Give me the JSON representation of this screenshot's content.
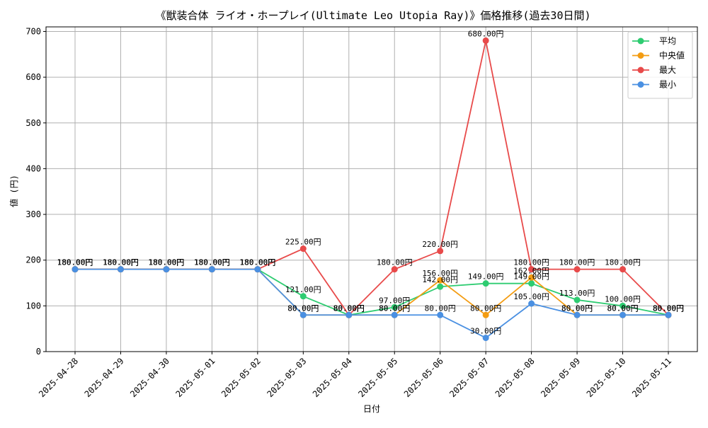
{
  "chart_data": {
    "type": "line",
    "title": "《獣装合体 ライオ・ホープレイ(Ultimate Leo Utopia Ray)》価格推移(過去30日間)",
    "xlabel": "日付",
    "ylabel": "値 (円)",
    "ylim": [
      0,
      710
    ],
    "yticks": [
      0,
      100,
      200,
      300,
      400,
      500,
      600,
      700
    ],
    "grid": true,
    "legend_position": "top-right",
    "value_suffix": "円",
    "categories": [
      "2025-04-28",
      "2025-04-29",
      "2025-04-30",
      "2025-05-01",
      "2025-05-02",
      "2025-05-03",
      "2025-05-04",
      "2025-05-05",
      "2025-05-06",
      "2025-05-07",
      "2025-05-08",
      "2025-05-09",
      "2025-05-10",
      "2025-05-11"
    ],
    "series": [
      {
        "name": "平均",
        "color": "#2ecc71",
        "values": [
          180,
          180,
          180,
          180,
          180,
          121,
          80,
          97,
          142,
          149,
          149,
          113,
          100,
          80
        ]
      },
      {
        "name": "中央値",
        "color": "#f39c12",
        "values": [
          180,
          180,
          180,
          180,
          180,
          80,
          80,
          80,
          156,
          80,
          162,
          80,
          80,
          80
        ]
      },
      {
        "name": "最大",
        "color": "#e84a4a",
        "values": [
          180,
          180,
          180,
          180,
          180,
          225,
          80,
          180,
          220,
          680,
          180,
          180,
          180,
          80
        ]
      },
      {
        "name": "最小",
        "color": "#4a90e2",
        "values": [
          180,
          180,
          180,
          180,
          180,
          80,
          80,
          80,
          80,
          30,
          105,
          80,
          80,
          80
        ]
      }
    ]
  }
}
